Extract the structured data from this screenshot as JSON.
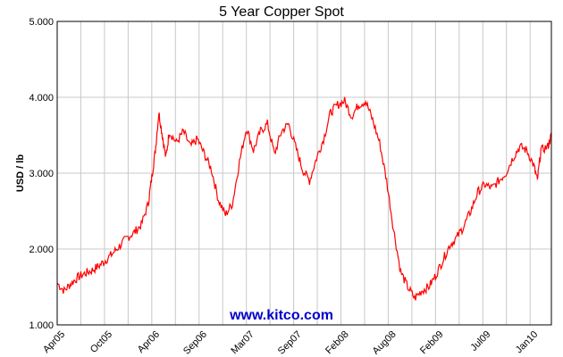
{
  "chart_data": {
    "type": "line",
    "title": "5 Year Copper Spot",
    "ylabel": "USD / lb",
    "xlabel": "",
    "ylim": [
      1.0,
      5.0
    ],
    "yticks": [
      "1.000",
      "2.000",
      "3.000",
      "4.000",
      "5.000"
    ],
    "xticks": [
      "Apr05",
      "Oct05",
      "Apr06",
      "Sep06",
      "Mar07",
      "Sep07",
      "Feb08",
      "Aug08",
      "Feb09",
      "Jul09",
      "Jan10"
    ],
    "grid": true,
    "watermark": "www.kitco.com",
    "watermark_color": "#0000cc",
    "line_color": "#ff0000",
    "grid_color": "#c8c8c8",
    "series": [
      {
        "points": [
          [
            0,
            1.55
          ],
          [
            2,
            1.45
          ],
          [
            4,
            1.55
          ],
          [
            6,
            1.63
          ],
          [
            8,
            1.68
          ],
          [
            10,
            1.72
          ],
          [
            12,
            1.78
          ],
          [
            14,
            1.86
          ],
          [
            16,
            1.95
          ],
          [
            18,
            2.05
          ],
          [
            20,
            2.15
          ],
          [
            22,
            2.22
          ],
          [
            24,
            2.32
          ],
          [
            26,
            2.6
          ],
          [
            27,
            2.95
          ],
          [
            28,
            3.3
          ],
          [
            29,
            3.8
          ],
          [
            30,
            3.5
          ],
          [
            31,
            3.2
          ],
          [
            32,
            3.55
          ],
          [
            34,
            3.4
          ],
          [
            36,
            3.55
          ],
          [
            38,
            3.35
          ],
          [
            40,
            3.45
          ],
          [
            42,
            3.25
          ],
          [
            44,
            3.05
          ],
          [
            46,
            2.65
          ],
          [
            48,
            2.45
          ],
          [
            50,
            2.6
          ],
          [
            52,
            3.15
          ],
          [
            54,
            3.6
          ],
          [
            56,
            3.3
          ],
          [
            58,
            3.55
          ],
          [
            60,
            3.65
          ],
          [
            62,
            3.25
          ],
          [
            64,
            3.55
          ],
          [
            66,
            3.65
          ],
          [
            68,
            3.35
          ],
          [
            70,
            3.05
          ],
          [
            72,
            2.9
          ],
          [
            74,
            3.2
          ],
          [
            76,
            3.45
          ],
          [
            78,
            3.8
          ],
          [
            80,
            3.9
          ],
          [
            82,
            3.95
          ],
          [
            84,
            3.75
          ],
          [
            86,
            3.9
          ],
          [
            88,
            3.95
          ],
          [
            90,
            3.7
          ],
          [
            92,
            3.4
          ],
          [
            94,
            2.9
          ],
          [
            96,
            2.25
          ],
          [
            98,
            1.7
          ],
          [
            100,
            1.5
          ],
          [
            102,
            1.35
          ],
          [
            104,
            1.45
          ],
          [
            106,
            1.5
          ],
          [
            108,
            1.65
          ],
          [
            110,
            1.85
          ],
          [
            112,
            2.05
          ],
          [
            114,
            2.15
          ],
          [
            116,
            2.3
          ],
          [
            118,
            2.5
          ],
          [
            120,
            2.75
          ],
          [
            122,
            2.85
          ],
          [
            124,
            2.8
          ],
          [
            126,
            2.9
          ],
          [
            128,
            3.0
          ],
          [
            130,
            3.2
          ],
          [
            132,
            3.35
          ],
          [
            134,
            3.3
          ],
          [
            136,
            3.1
          ],
          [
            137,
            2.9
          ],
          [
            138,
            3.3
          ],
          [
            140,
            3.35
          ],
          [
            141,
            3.5
          ]
        ]
      }
    ]
  }
}
